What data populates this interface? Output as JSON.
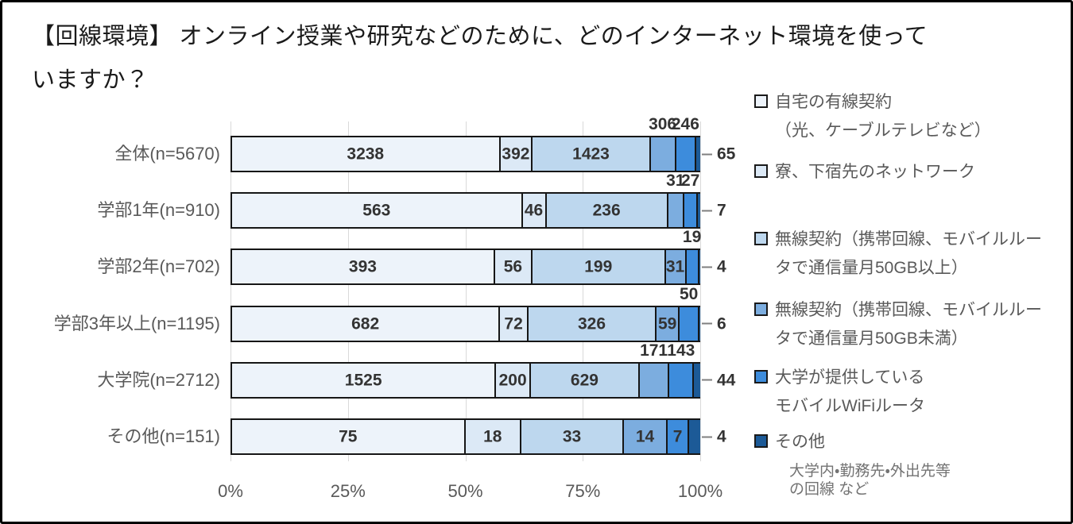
{
  "title_lines": [
    "【回線環境】 オンライン授業や研究などのために、どのインターネット環境を使って",
    "いますか？"
  ],
  "chart_data": {
    "type": "bar",
    "orientation": "horizontal",
    "stacked": true,
    "percent_axis": true,
    "x_ticks": [
      "0%",
      "25%",
      "50%",
      "75%",
      "100%"
    ],
    "x_range_percent": [
      0,
      100
    ],
    "grid": true,
    "legend_position": "right",
    "categories": [
      "全体(n=5670)",
      "学部1年(n=910)",
      "学部2年(n=702)",
      "学部3年以上(n=1195)",
      "大学院(n=2712)",
      "その他(n=151)"
    ],
    "totals": [
      5670,
      910,
      702,
      1195,
      2712,
      151
    ],
    "series": [
      {
        "name": "自宅の有線契約（光、ケーブルテレビなど）",
        "color": "#EDF3FA",
        "values": [
          3238,
          563,
          393,
          682,
          1525,
          75
        ]
      },
      {
        "name": "寮、下宿先のネットワーク",
        "color": "#DCE9F6",
        "values": [
          392,
          46,
          56,
          72,
          200,
          18
        ]
      },
      {
        "name": "無線契約（携帯回線、モバイルルータで通信量月50GB以上）",
        "color": "#BDD7EE",
        "values": [
          1423,
          236,
          199,
          326,
          629,
          33
        ]
      },
      {
        "name": "無線契約（携帯回線、モバイルルータで通信量月50GB未満）",
        "color": "#7CADDF",
        "values": [
          306,
          31,
          31,
          59,
          171,
          14
        ]
      },
      {
        "name": "大学が提供しているモバイルWiFiルータ",
        "color": "#3D8CDC",
        "values": [
          246,
          27,
          19,
          50,
          143,
          7
        ]
      },
      {
        "name": "その他（大学内・勤務先・外出先等の回線 など）",
        "color": "#1C5A97",
        "values": [
          65,
          7,
          4,
          6,
          44,
          4
        ]
      }
    ],
    "value_label_placement": [
      [
        "in",
        "in",
        "in",
        "above",
        "above",
        "out"
      ],
      [
        "in",
        "in",
        "in",
        "above",
        "above",
        "out"
      ],
      [
        "in",
        "in",
        "in",
        "in",
        "above",
        "out"
      ],
      [
        "in",
        "in",
        "in",
        "in",
        "above",
        "out"
      ],
      [
        "in",
        "in",
        "in",
        "above",
        "above",
        "out"
      ],
      [
        "in",
        "in",
        "in",
        "in",
        "in",
        "out"
      ]
    ]
  },
  "legend": {
    "items": [
      {
        "lines": [
          "自宅の有線契約",
          "（光、ケーブルテレビなど）"
        ]
      },
      {
        "lines": [
          "寮、下宿先のネットワーク"
        ]
      },
      {
        "lines": [
          "無線契約（携帯回線、モバイルルー",
          "タで通信量月50GB以上）"
        ]
      },
      {
        "lines": [
          "無線契約（携帯回線、モバイルルー",
          "タで通信量月50GB未満）"
        ]
      },
      {
        "lines": [
          "大学が提供している",
          "モバイルWiFiルータ"
        ]
      },
      {
        "lines": [
          "その他"
        ],
        "note_lines": [
          "大学内・勤務先・外出先等",
          "の回線 など"
        ]
      }
    ]
  },
  "colors": {
    "bar_border": "#161616",
    "gridline": "#D9D9D9",
    "value_label": "#333333",
    "axis_text": "#595959",
    "leader_line": "#7F7F7F"
  }
}
